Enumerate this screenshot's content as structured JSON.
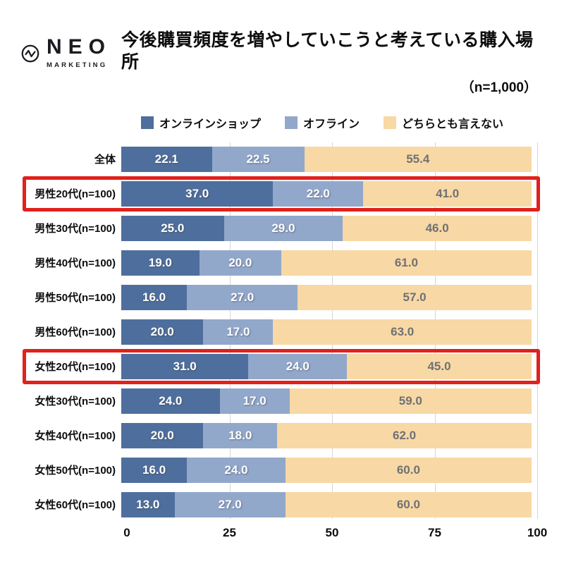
{
  "header": {
    "logo_name": "NEO",
    "logo_sub": "MARKETING",
    "title": "今後購買頻度を増やしていこうと考えている購入場所",
    "subtitle": "（n=1,000）"
  },
  "colors": {
    "online": "#4e6f9d",
    "offline": "#92a8cb",
    "neither": "#f8d8a4",
    "value_on_blue": "#ffffff",
    "value_on_neither": "#6e7175",
    "highlight_box": "#e0211c",
    "gridline": "#d6d6d6"
  },
  "chart_data": {
    "type": "bar",
    "orientation": "horizontal",
    "stacked": true,
    "title": "今後購買頻度を増やしていこうと考えている購入場所",
    "sample_note": "（n=1,000）",
    "xlim": [
      0,
      100
    ],
    "x_ticks": [
      0,
      25,
      50,
      75,
      100
    ],
    "grid": true,
    "legend_position": "top",
    "value_format": "one_decimal",
    "categories": [
      "全体",
      "男性20代(n=100)",
      "男性30代(n=100)",
      "男性40代(n=100)",
      "男性50代(n=100)",
      "男性60代(n=100)",
      "女性20代(n=100)",
      "女性30代(n=100)",
      "女性40代(n=100)",
      "女性50代(n=100)",
      "女性60代(n=100)"
    ],
    "series": [
      {
        "name": "オンラインショップ",
        "color_key": "online",
        "values": [
          22.1,
          37.0,
          25.0,
          19.0,
          16.0,
          20.0,
          31.0,
          24.0,
          20.0,
          16.0,
          13.0
        ]
      },
      {
        "name": "オフライン",
        "color_key": "offline",
        "values": [
          22.5,
          22.0,
          29.0,
          20.0,
          27.0,
          17.0,
          24.0,
          17.0,
          18.0,
          24.0,
          27.0
        ]
      },
      {
        "name": "どちらとも言えない",
        "color_key": "neither",
        "values": [
          55.4,
          41.0,
          46.0,
          61.0,
          57.0,
          63.0,
          45.0,
          59.0,
          62.0,
          60.0,
          60.0
        ]
      }
    ],
    "highlighted_categories": [
      "男性20代(n=100)",
      "女性20代(n=100)"
    ]
  }
}
